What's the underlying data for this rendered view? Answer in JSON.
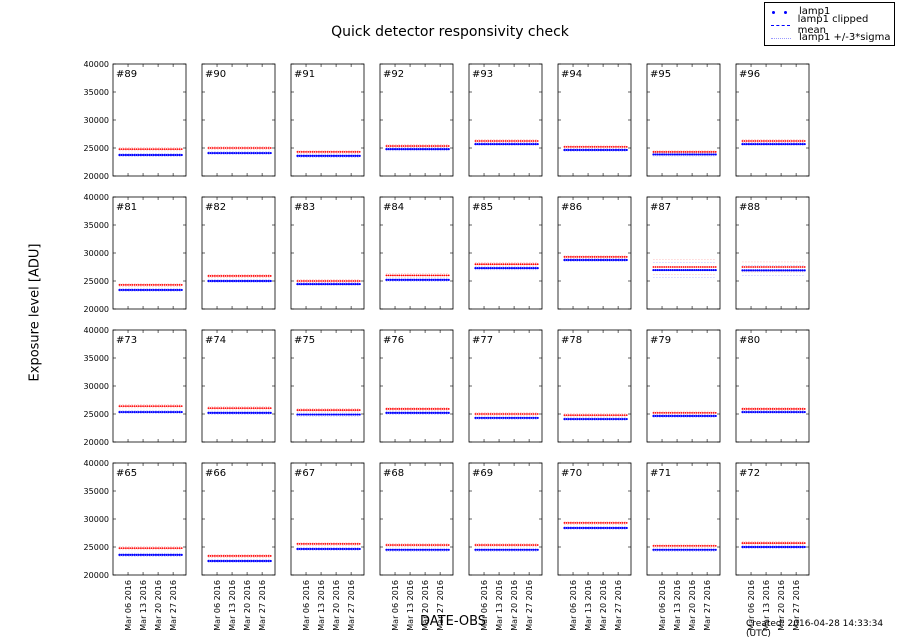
{
  "chart_data": {
    "type": "scatter",
    "title": "Quick detector responsivity check",
    "xlabel": "DATE-OBS",
    "ylabel": "Exposure level [ADU]",
    "ylim": [
      20000,
      40000
    ],
    "yticks": [
      "20000",
      "25000",
      "30000",
      "35000",
      "40000"
    ],
    "xlim": [
      "2016-02-28",
      "2016-04-02"
    ],
    "xticks": [
      {
        "date": "2016-03-06",
        "label": "Mar 06 2016"
      },
      {
        "date": "2016-03-13",
        "label": "Mar 13 2016"
      },
      {
        "date": "2016-03-20",
        "label": "Mar 20 2016"
      },
      {
        "date": "2016-03-27",
        "label": "Mar 27 2016"
      }
    ],
    "date_range": [
      "2016-03-02",
      "2016-03-31"
    ],
    "grid": false,
    "legend_placement": "top-right",
    "legend": [
      {
        "label": "lamp1",
        "style": "dots",
        "color": "#0000ff"
      },
      {
        "label": "lamp1 clipped mean",
        "style": "dashed",
        "color": "#0000ff"
      },
      {
        "label": "lamp1 +/-3*sigma",
        "style": "dotted",
        "color": "#9999ff"
      }
    ],
    "colors": {
      "blue_series": "#0000ff",
      "red_series": "#ff0000"
    },
    "panels": [
      {
        "label": "#89",
        "blue": 23750,
        "red": 24800,
        "sigma": 100
      },
      {
        "label": "#90",
        "blue": 24100,
        "red": 25000,
        "sigma": 100
      },
      {
        "label": "#91",
        "blue": 23600,
        "red": 24300,
        "sigma": 100
      },
      {
        "label": "#92",
        "blue": 24800,
        "red": 25350,
        "sigma": 100
      },
      {
        "label": "#93",
        "blue": 25700,
        "red": 26250,
        "sigma": 100
      },
      {
        "label": "#94",
        "blue": 24650,
        "red": 25200,
        "sigma": 100
      },
      {
        "label": "#95",
        "blue": 23850,
        "red": 24300,
        "sigma": 100
      },
      {
        "label": "#96",
        "blue": 25700,
        "red": 26250,
        "sigma": 100
      },
      {
        "label": "#81",
        "blue": 23400,
        "red": 24300,
        "sigma": 100
      },
      {
        "label": "#82",
        "blue": 25000,
        "red": 25900,
        "sigma": 100
      },
      {
        "label": "#83",
        "blue": 24450,
        "red": 25000,
        "sigma": 100
      },
      {
        "label": "#84",
        "blue": 25200,
        "red": 26000,
        "sigma": 100
      },
      {
        "label": "#85",
        "blue": 27300,
        "red": 28000,
        "sigma": 100
      },
      {
        "label": "#86",
        "blue": 28750,
        "red": 29300,
        "sigma": 100
      },
      {
        "label": "#87",
        "blue": 26950,
        "red": 27500,
        "sigma": 450
      },
      {
        "label": "#88",
        "blue": 26900,
        "red": 27500,
        "sigma": 300
      },
      {
        "label": "#73",
        "blue": 25350,
        "red": 26400,
        "sigma": 100
      },
      {
        "label": "#74",
        "blue": 25200,
        "red": 26050,
        "sigma": 100
      },
      {
        "label": "#75",
        "blue": 24900,
        "red": 25700,
        "sigma": 100
      },
      {
        "label": "#76",
        "blue": 25200,
        "red": 25900,
        "sigma": 100
      },
      {
        "label": "#77",
        "blue": 24300,
        "red": 25000,
        "sigma": 100
      },
      {
        "label": "#78",
        "blue": 24100,
        "red": 24800,
        "sigma": 100
      },
      {
        "label": "#79",
        "blue": 24650,
        "red": 25200,
        "sigma": 100
      },
      {
        "label": "#80",
        "blue": 25350,
        "red": 25900,
        "sigma": 100
      },
      {
        "label": "#65",
        "blue": 23600,
        "red": 24800,
        "sigma": 100
      },
      {
        "label": "#66",
        "blue": 22500,
        "red": 23400,
        "sigma": 100
      },
      {
        "label": "#67",
        "blue": 24650,
        "red": 25550,
        "sigma": 100
      },
      {
        "label": "#68",
        "blue": 24500,
        "red": 25350,
        "sigma": 100
      },
      {
        "label": "#69",
        "blue": 24500,
        "red": 25350,
        "sigma": 100
      },
      {
        "label": "#70",
        "blue": 28400,
        "red": 29300,
        "sigma": 100
      },
      {
        "label": "#71",
        "blue": 24500,
        "red": 25200,
        "sigma": 100
      },
      {
        "label": "#72",
        "blue": 25000,
        "red": 25700,
        "sigma": 100
      }
    ]
  },
  "credit": "Created: 2016-04-28 14:33:34 (UTC)"
}
